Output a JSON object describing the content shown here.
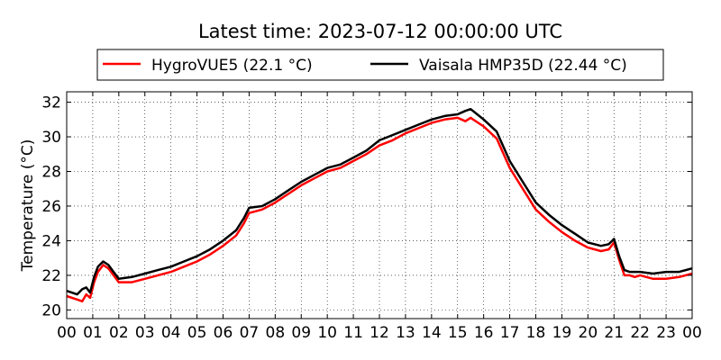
{
  "chart_data": {
    "type": "line",
    "title": "Latest time: 2023-07-12 00:00:00 UTC",
    "xlabel": "",
    "ylabel": "Temperature (°C)",
    "xlim": [
      0,
      24
    ],
    "ylim": [
      19.5,
      32.6
    ],
    "x_ticks": [
      "00",
      "01",
      "02",
      "03",
      "04",
      "05",
      "06",
      "07",
      "08",
      "09",
      "10",
      "11",
      "12",
      "13",
      "14",
      "15",
      "16",
      "17",
      "18",
      "19",
      "20",
      "21",
      "22",
      "23",
      "00"
    ],
    "y_ticks": [
      20,
      22,
      24,
      26,
      28,
      30,
      32
    ],
    "grid": true,
    "legend_position": "top",
    "series": [
      {
        "name": "HygroVUE5 (22.1 °C)",
        "color": "#ff0000",
        "x": [
          0,
          0.4,
          0.6,
          0.75,
          0.9,
          1.05,
          1.2,
          1.4,
          1.6,
          1.8,
          2.0,
          2.5,
          3.0,
          3.5,
          4.0,
          4.5,
          5.0,
          5.5,
          6.0,
          6.5,
          6.8,
          7.0,
          7.5,
          8.0,
          8.5,
          9.0,
          9.5,
          10.0,
          10.5,
          11.0,
          11.5,
          12.0,
          12.5,
          13.0,
          13.5,
          14.0,
          14.5,
          15.0,
          15.3,
          15.5,
          16.0,
          16.5,
          17.0,
          17.5,
          18.0,
          18.5,
          19.0,
          19.5,
          20.0,
          20.5,
          20.8,
          21.0,
          21.2,
          21.4,
          21.6,
          21.8,
          22.0,
          22.5,
          23.0,
          23.5,
          24.0
        ],
        "values": [
          20.8,
          20.6,
          20.5,
          20.9,
          20.7,
          21.6,
          22.2,
          22.6,
          22.4,
          22.0,
          21.6,
          21.6,
          21.8,
          22.0,
          22.2,
          22.5,
          22.8,
          23.2,
          23.7,
          24.3,
          25.0,
          25.6,
          25.8,
          26.2,
          26.7,
          27.2,
          27.6,
          28.0,
          28.2,
          28.6,
          29.0,
          29.5,
          29.8,
          30.2,
          30.5,
          30.8,
          31.0,
          31.1,
          30.9,
          31.1,
          30.6,
          29.9,
          28.2,
          27.0,
          25.8,
          25.1,
          24.5,
          24.0,
          23.6,
          23.4,
          23.5,
          23.9,
          22.9,
          22.0,
          22.0,
          21.9,
          22.0,
          21.8,
          21.8,
          21.9,
          22.1
        ]
      },
      {
        "name": "Vaisala HMP35D (22.44 °C)",
        "color": "#000000",
        "x": [
          0,
          0.4,
          0.6,
          0.75,
          0.9,
          1.05,
          1.2,
          1.4,
          1.6,
          1.8,
          2.0,
          2.5,
          3.0,
          3.5,
          4.0,
          4.5,
          5.0,
          5.5,
          6.0,
          6.5,
          6.8,
          7.0,
          7.5,
          8.0,
          8.5,
          9.0,
          9.5,
          10.0,
          10.5,
          11.0,
          11.5,
          12.0,
          12.5,
          13.0,
          13.5,
          14.0,
          14.5,
          15.0,
          15.3,
          15.5,
          16.0,
          16.5,
          17.0,
          17.5,
          18.0,
          18.5,
          19.0,
          19.5,
          20.0,
          20.5,
          20.8,
          21.0,
          21.2,
          21.4,
          21.6,
          21.8,
          22.0,
          22.5,
          23.0,
          23.5,
          24.0
        ],
        "values": [
          21.1,
          20.9,
          21.2,
          21.3,
          21.0,
          21.9,
          22.5,
          22.8,
          22.6,
          22.2,
          21.8,
          21.9,
          22.1,
          22.3,
          22.5,
          22.8,
          23.1,
          23.5,
          24.0,
          24.6,
          25.3,
          25.9,
          26.0,
          26.4,
          26.9,
          27.4,
          27.8,
          28.2,
          28.4,
          28.8,
          29.2,
          29.8,
          30.1,
          30.4,
          30.7,
          31.0,
          31.2,
          31.3,
          31.5,
          31.6,
          31.0,
          30.3,
          28.6,
          27.4,
          26.2,
          25.5,
          24.9,
          24.4,
          23.9,
          23.7,
          23.8,
          24.1,
          23.1,
          22.3,
          22.2,
          22.2,
          22.2,
          22.1,
          22.2,
          22.2,
          22.4
        ]
      }
    ]
  }
}
